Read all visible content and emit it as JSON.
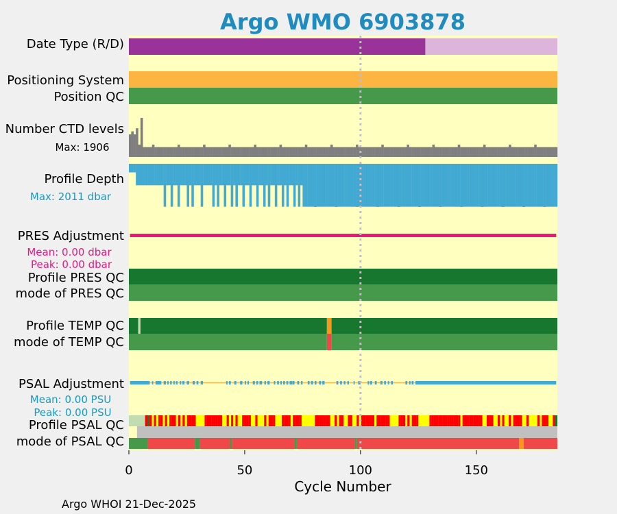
{
  "chart_data": {
    "type": "table",
    "title": "Argo WMO 6903878",
    "xlabel": "Cycle Number",
    "xlim": [
      0,
      185
    ],
    "xticks": [
      "0",
      "50",
      "100",
      "150"
    ],
    "xtick_values": [
      0,
      50,
      100,
      150
    ],
    "footer": "Argo WHOI 21-Dec-2025",
    "dotted_reference_cycle": 100,
    "rows": {
      "date_type": {
        "label": "Date Type (R/D)",
        "segments": [
          {
            "from": 0,
            "to": 128,
            "value": "R",
            "color": "#993399"
          },
          {
            "from": 128,
            "to": 185,
            "value": "D",
            "color": "#dcb4dc"
          }
        ]
      },
      "positioning_system": {
        "label": "Positioning System",
        "segments": [
          {
            "from": 0,
            "to": 185,
            "value": "GPS",
            "color": "#fcb443"
          }
        ]
      },
      "position_qc": {
        "label": "Position QC",
        "segments": [
          {
            "from": 0,
            "to": 185,
            "value": "1",
            "color": "#46984a"
          }
        ]
      },
      "ctd_levels": {
        "label": "Number CTD levels",
        "max_label": "Max: 1906",
        "max": 1906,
        "color": "#7f7f7f",
        "early": [
          1100,
          1250,
          1100,
          1400,
          600,
          1906
        ],
        "typical": 480
      },
      "profile_depth": {
        "label": "Profile Depth",
        "max_label": "Max: 2011 dbar",
        "max": 2011,
        "color": "#42aad2",
        "label_color": "#1799c0",
        "deep_from_cycle": 76,
        "deep": 2000,
        "shallow": 1000,
        "extra_deep_cycles": [
          16,
          19,
          22,
          26,
          28,
          32,
          37,
          39,
          42,
          45,
          47,
          50,
          53,
          56,
          59,
          61,
          64,
          67,
          69,
          72,
          74
        ]
      },
      "pres_adjustment": {
        "label": "PRES Adjustment",
        "mean_label": "Mean: 0.00 dbar",
        "peak_label": "Peak: 0.00 dbar",
        "color": "#e6197e"
      },
      "profile_pres_qc": {
        "label": "Profile PRES QC",
        "segments": [
          {
            "from": 0,
            "to": 185,
            "value": "A",
            "color": "#17772e"
          }
        ]
      },
      "mode_pres_qc": {
        "label": "mode of PRES QC",
        "segments": [
          {
            "from": 0,
            "to": 185,
            "value": "1",
            "color": "#46984a"
          }
        ]
      },
      "profile_temp_qc": {
        "label": "Profile TEMP QC",
        "segments": [
          {
            "from": 0,
            "to": 4,
            "value": "A",
            "color": "#17772e"
          },
          {
            "from": 4,
            "to": 5,
            "value": "none",
            "color": "#c0dcb0"
          },
          {
            "from": 5,
            "to": 85.5,
            "value": "A",
            "color": "#17772e"
          },
          {
            "from": 85.5,
            "to": 87.5,
            "value": "B",
            "color": "#f7981d"
          },
          {
            "from": 87.5,
            "to": 185,
            "value": "A",
            "color": "#17772e"
          }
        ]
      },
      "mode_temp_qc": {
        "label": "mode of TEMP QC",
        "segments": [
          {
            "from": 0,
            "to": 85.5,
            "value": "1",
            "color": "#46984a"
          },
          {
            "from": 85.5,
            "to": 87.5,
            "value": "4",
            "color": "#f04848"
          },
          {
            "from": 87.5,
            "to": 185,
            "value": "1",
            "color": "#46984a"
          }
        ]
      },
      "psal_adjustment": {
        "label": "PSAL Adjustment",
        "mean_label": "Mean: 0.00 PSU",
        "peak_label": "Peak: 0.00 PSU",
        "color": "#42aad2",
        "label_color": "#1799c0",
        "gap_color": "#f7b44a",
        "gaps": [
          [
            9,
            10
          ],
          [
            10.5,
            11.5
          ],
          [
            14,
            15
          ],
          [
            16,
            16.6
          ],
          [
            17.2,
            17.8
          ],
          [
            18.5,
            19.2
          ],
          [
            19.8,
            20.3
          ],
          [
            21,
            22
          ],
          [
            22.6,
            23.1
          ],
          [
            24,
            25
          ],
          [
            26,
            27.5
          ],
          [
            28.5,
            29.2
          ],
          [
            30,
            31
          ],
          [
            32,
            42
          ],
          [
            42.6,
            43.2
          ],
          [
            44,
            45.5
          ],
          [
            46.4,
            48
          ],
          [
            49,
            50
          ],
          [
            50.6,
            51.2
          ],
          [
            51.8,
            53.5
          ],
          [
            54.4,
            55
          ],
          [
            55.8,
            56.4
          ],
          [
            57.5,
            58.5
          ],
          [
            59.2,
            59.8
          ],
          [
            60.8,
            62.6
          ],
          [
            63.2,
            64
          ],
          [
            64.8,
            65.4
          ],
          [
            66,
            66.6
          ],
          [
            67.4,
            68
          ],
          [
            68.8,
            69.4
          ],
          [
            70.5,
            70.6
          ],
          [
            71.5,
            72.7
          ],
          [
            73.5,
            74.3
          ],
          [
            75,
            77.2
          ],
          [
            78,
            78.6
          ],
          [
            79.5,
            80.2
          ],
          [
            81,
            82.1
          ],
          [
            83,
            83.5
          ],
          [
            84.5,
            89.6
          ],
          [
            90.4,
            91.2
          ],
          [
            92,
            92.8
          ],
          [
            93.5,
            94.3
          ],
          [
            95,
            97
          ],
          [
            97.5,
            99
          ],
          [
            100,
            103.1
          ],
          [
            103.7,
            104.1
          ],
          [
            105,
            106.2
          ],
          [
            107,
            108.6
          ],
          [
            109.5,
            110.2
          ],
          [
            111,
            111.8
          ],
          [
            112.4,
            113.2
          ],
          [
            114,
            119.4
          ],
          [
            120.2,
            121
          ],
          [
            121.6,
            122.1
          ],
          [
            122.9,
            123.7
          ]
        ]
      },
      "profile_psal_qc": {
        "label": "Profile PSAL QC",
        "first_color": "#c0dcb0",
        "last_color": "#17772e",
        "pattern_colors": {
          "F": "#ff0000",
          "E": "#ffff00",
          "A": "#17772e"
        },
        "pattern": "FAFEFEFFEFEFFFEFEFEFFFFEEEEFFFFFFFFEEFEFEFEEFFFFEEFEEEFEFFFEEEFFFFEFFFFEEEEEEFFFFFFFEEFEFFEEFFEEFEFFFFFFEFFFFFFEEEEFFFEFEFFFEEEEEFFFFFFFFFFFFFFEFFFFFFFFFEEFFFEEFEFEEFEFFFFEEFEEEEFEFFFEEF"
      },
      "mode_psal_qc": {
        "label": "mode of PSAL QC",
        "band_color": "#c0c0c0",
        "band_value": "undefined",
        "segments": [
          {
            "from": 0,
            "to": 8,
            "value": "1",
            "color": "#46984a"
          },
          {
            "from": 8,
            "to": 28.5,
            "value": "4",
            "color": "#f04848"
          },
          {
            "from": 28.5,
            "to": 30.5,
            "value": "1",
            "color": "#46984a"
          },
          {
            "from": 30.5,
            "to": 43.5,
            "value": "4",
            "color": "#f04848"
          },
          {
            "from": 43.5,
            "to": 44.5,
            "value": "1",
            "color": "#46984a"
          },
          {
            "from": 44.5,
            "to": 71.5,
            "value": "4",
            "color": "#f04848"
          },
          {
            "from": 71.5,
            "to": 72.5,
            "value": "1",
            "color": "#46984a"
          },
          {
            "from": 72.5,
            "to": 97.5,
            "value": "4",
            "color": "#f04848"
          },
          {
            "from": 97.5,
            "to": 98.5,
            "value": "1",
            "color": "#46984a"
          },
          {
            "from": 98.5,
            "to": 168.5,
            "value": "4",
            "color": "#f04848"
          },
          {
            "from": 168.5,
            "to": 170.5,
            "value": "3",
            "color": "#f7981d"
          },
          {
            "from": 170.5,
            "to": 185,
            "value": "4",
            "color": "#f04848"
          }
        ]
      }
    }
  },
  "colors": {
    "title": "#1f8bbf",
    "plot_bg": "#ffffc0",
    "page_bg": "#f0f0f0",
    "pres_label": "#e6197e",
    "dotted_line": "#c0c0c0"
  }
}
